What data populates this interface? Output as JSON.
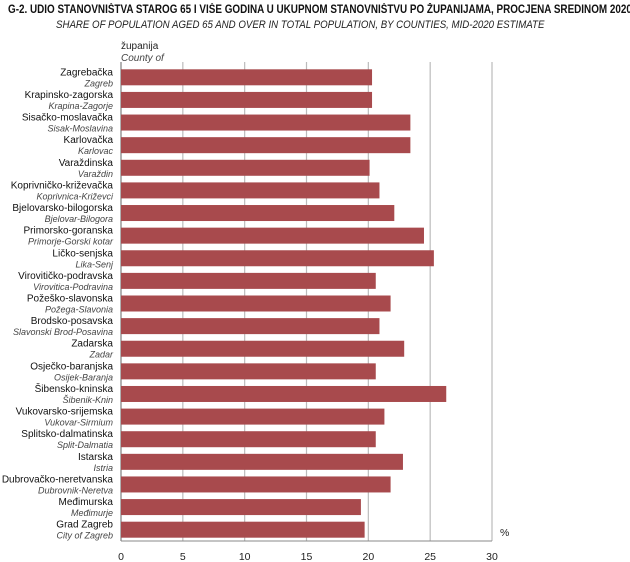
{
  "title": "G-2.  UDIO STANOVNIŠTVA STAROG 65 I VIŠE GODINA U UKUPNOM STANOVNIŠTVU PO ŽUPANIJAMA, PROCJENA SREDINOM 2020.",
  "subtitle": "SHARE OF POPULATION AGED 65 AND OVER IN TOTAL POPULATION, BY COUNTIES, MID-2020 ESTIMATE",
  "category_label": "županija",
  "category_label_en": "County of",
  "chart_data": {
    "type": "bar",
    "orientation": "horizontal",
    "title": "UDIO STANOVNIŠTVA STAROG 65 I VIŠE GODINA U UKUPNOM STANOVNIŠTVU PO ŽUPANIJAMA, PROCJENA SREDINOM 2020.",
    "xlabel": "%",
    "xlim": [
      0,
      30
    ],
    "xticks": [
      "0",
      "5",
      "10",
      "15",
      "20",
      "25",
      "30"
    ],
    "grid": true,
    "bar_color": "#a84a4d",
    "categories": [
      "Zagrebačka",
      "Krapinsko-zagorska",
      "Sisačko-moslavačka",
      "Karlovačka",
      "Varaždinska",
      "Koprivničko-križevačka",
      "Bjelovarsko-bilogorska",
      "Primorsko-goranska",
      "Ličko-senjska",
      "Virovitičko-podravska",
      "Požeško-slavonska",
      "Brodsko-posavska",
      "Zadarska",
      "Osječko-baranjska",
      "Šibensko-kninska",
      "Vukovarsko-srijemska",
      "Splitsko-dalmatinska",
      "Istarska",
      "Dubrovačko-neretvanska",
      "Međimurska",
      "Grad Zagreb"
    ],
    "categories_en": [
      "Zagreb",
      "Krapina-Zagorje",
      "Sisak-Moslavina",
      "Karlovac",
      "Varaždin",
      "Koprivnica-Križevci",
      "Bjelovar-Bilogora",
      "Primorje-Gorski kotar",
      "Lika-Senj",
      "Virovitica-Podravina",
      "Požega-Slavonia",
      "Slavonski Brod-Posavina",
      "Zadar",
      "Osijek-Baranja",
      "Šibenik-Knin",
      "Vukovar-Sirmium",
      "Split-Dalmatia",
      "Istria",
      "Dubrovnik-Neretva",
      "Međimurje",
      "City of Zagreb"
    ],
    "values": [
      20.3,
      20.3,
      23.4,
      23.4,
      20.1,
      20.9,
      22.1,
      24.5,
      25.3,
      20.6,
      21.8,
      20.9,
      22.9,
      20.6,
      26.3,
      21.3,
      20.6,
      22.8,
      21.8,
      19.4,
      19.7
    ]
  }
}
